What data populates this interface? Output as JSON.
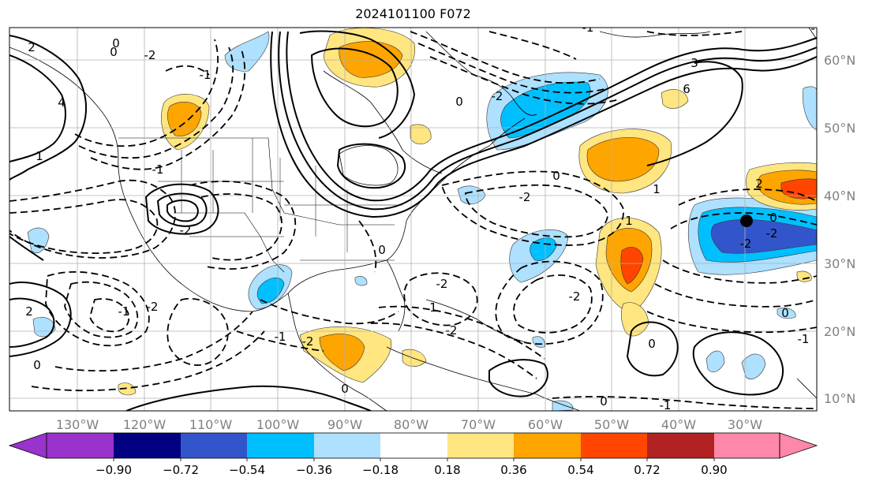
{
  "title": "2024101100 F072",
  "longitude_labels": [
    "130°W",
    "120°W",
    "110°W",
    "100°W",
    "90°W",
    "80°W",
    "70°W",
    "60°W",
    "50°W",
    "40°W",
    "30°W"
  ],
  "latitude_labels": [
    "60°N",
    "50°N",
    "40°N",
    "30°N",
    "20°N",
    "10°N"
  ],
  "colorbar": {
    "tick_labels": [
      "−0.90",
      "−0.72",
      "−0.54",
      "−0.36",
      "−0.18",
      "0.18",
      "0.36",
      "0.54",
      "0.72",
      "0.90"
    ],
    "colors": [
      "#9933cc",
      "#000080",
      "#3355cc",
      "#00bfff",
      "#aee0ff",
      "#ffffff",
      "#ffe680",
      "#ffa500",
      "#ff4500",
      "#b22222",
      "#ff88aa"
    ]
  },
  "contour_labels": [
    "0",
    "-2",
    "-1",
    "2",
    "4",
    "6",
    "-2",
    "-1",
    "0",
    "1",
    "3",
    "-2",
    "0",
    "-2",
    "2",
    "-1",
    "-2",
    "0",
    "-1",
    "0",
    "1",
    "-2",
    "0",
    "-2",
    "1",
    "-1",
    "0",
    "-2",
    "0",
    "-1",
    "2",
    "0",
    "-2",
    "0",
    "-2",
    "1",
    "-2",
    "-1",
    "0",
    "-1"
  ],
  "colors": {
    "land_line": "#000000",
    "grid": "#b0b0b0",
    "tick_text": "#808080"
  }
}
